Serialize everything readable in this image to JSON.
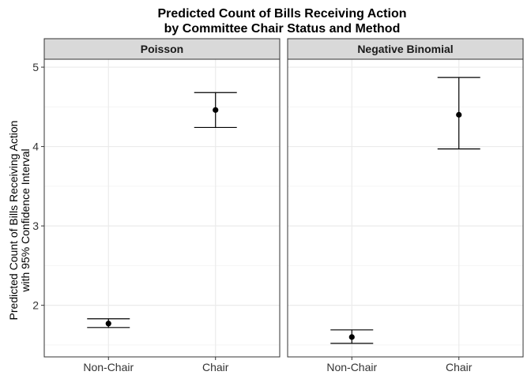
{
  "chart_data": {
    "type": "scatter",
    "title_lines": [
      "Predicted Count of Bills Receiving Action",
      "by Committee Chair Status and Method"
    ],
    "ylabel_lines": [
      "Predicted Count of Bills Receiving Action",
      "with 95% Confidence Interval"
    ],
    "xlabel": "",
    "categories": [
      "Non-Chair",
      "Chair"
    ],
    "ylim": [
      1.35,
      5.1
    ],
    "yticks": [
      2,
      3,
      4,
      5
    ],
    "grid": true,
    "panels": [
      {
        "name": "Poisson",
        "points": [
          {
            "x": "Non-Chair",
            "y": 1.77,
            "lower": 1.72,
            "upper": 1.83
          },
          {
            "x": "Chair",
            "y": 4.46,
            "lower": 4.24,
            "upper": 4.68
          }
        ]
      },
      {
        "name": "Negative Binomial",
        "points": [
          {
            "x": "Non-Chair",
            "y": 1.6,
            "lower": 1.52,
            "upper": 1.69
          },
          {
            "x": "Chair",
            "y": 4.4,
            "lower": 3.97,
            "upper": 4.87
          }
        ]
      }
    ],
    "colors": {
      "panel_border": "#333333",
      "strip_fill": "#d9d9d9",
      "grid_major": "#ebebeb",
      "grid_minor": "#f5f5f5",
      "mark": "#000000"
    }
  }
}
